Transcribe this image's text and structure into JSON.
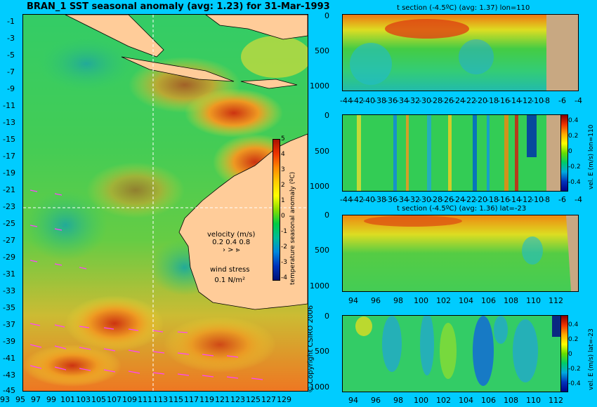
{
  "map": {
    "title": "BRAN_1 SST seasonal anomaly (avg: 1.23) for 31-Mar-1993",
    "lat_labels": [
      "-1",
      "-3",
      "-5",
      "-7",
      "-9",
      "-11",
      "-13",
      "-15",
      "-17",
      "-19",
      "-21",
      "-23",
      "-25",
      "-27",
      "-29",
      "-31",
      "-33",
      "-35",
      "-37",
      "-39",
      "-41",
      "-43",
      "-45"
    ],
    "lon_labels": [
      "93",
      "95",
      "97",
      "99",
      "101",
      "103",
      "105",
      "107",
      "109",
      "111",
      "113",
      "115",
      "117",
      "119",
      "121",
      "123",
      "125",
      "127",
      "129"
    ],
    "colorbar": {
      "label": "temperature seasonal anomaly (ºC)",
      "ticks": [
        "5",
        "4",
        "3",
        "2",
        "1",
        "0",
        "-1",
        "-2",
        "-3",
        "-4"
      ]
    },
    "velocity_legend": {
      "title": "velocity (m/s)",
      "scale": "0.2 0.4 0.8"
    },
    "wind_legend": {
      "title": "wind stress",
      "value": "0.1 N/m²"
    },
    "copyright": "© Copyright CSIRO 2006"
  },
  "panels": [
    {
      "title": "t section (-4.5ºC) (avg: 1.37) lon=110",
      "y_ticks": [
        "0",
        "500",
        "1000"
      ],
      "x_ticks": [
        "-44",
        "-42",
        "-40",
        "-38",
        "-36",
        "-34",
        "-32",
        "-30",
        "-28",
        "-26",
        "-24",
        "-22",
        "-20",
        "-18",
        "-16",
        "-14",
        "-12",
        "-10",
        "-8",
        "-6",
        "-4"
      ]
    },
    {
      "title": "",
      "y_ticks": [
        "0",
        "500",
        "1000"
      ],
      "x_ticks": [
        "-44",
        "-42",
        "-40",
        "-38",
        "-36",
        "-34",
        "-32",
        "-30",
        "-28",
        "-26",
        "-24",
        "-22",
        "-20",
        "-18",
        "-16",
        "-14",
        "-12",
        "-10",
        "-8",
        "-6",
        "-4"
      ],
      "colorbar_ticks": [
        "0.4",
        "0.2",
        "0",
        "-0.2",
        "-0.4"
      ],
      "colorbar_label": "vel. E (m/s) lon=110"
    },
    {
      "title": "t section (-4.5ºC) (avg: 1.36) lat=-23",
      "y_ticks": [
        "0",
        "500",
        "1000"
      ],
      "x_ticks": [
        "94",
        "96",
        "98",
        "100",
        "102",
        "104",
        "106",
        "108",
        "110",
        "112"
      ]
    },
    {
      "title": "",
      "y_ticks": [
        "0",
        "500",
        "1000"
      ],
      "x_ticks": [
        "94",
        "96",
        "98",
        "100",
        "102",
        "104",
        "106",
        "108",
        "110",
        "112"
      ],
      "colorbar_ticks": [
        "0.4",
        "0.2",
        "0",
        "-0.2",
        "-0.4"
      ],
      "colorbar_label": "vel. E (m/s) lat=-23"
    }
  ],
  "colors": {
    "background": "#00ccff",
    "land": "#ffcc99",
    "section_land": "#c8a882"
  }
}
